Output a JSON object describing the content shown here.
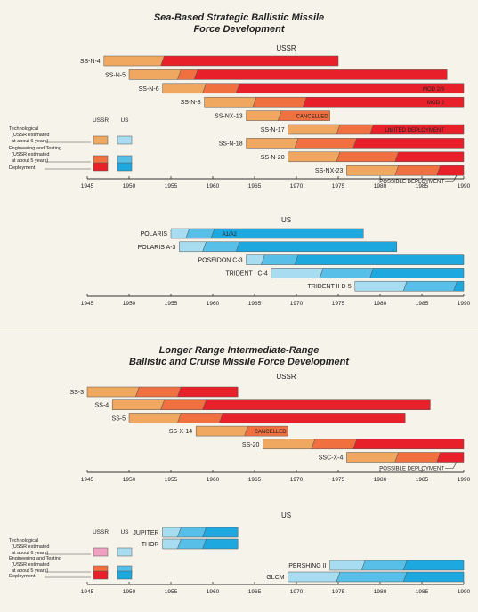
{
  "sections": {
    "sea": {
      "title_line1": "Sea-Based Strategic Ballistic Missile",
      "title_line2": "Force Development"
    },
    "lrinf": {
      "title_line1": "Longer Range Intermediate-Range",
      "title_line2": "Ballistic and Cruise Missile Force Development"
    }
  },
  "colors": {
    "ussr_tech": "#f0a860",
    "ussr_eng": "#f07040",
    "ussr_dep": "#e8202a",
    "us_tech": "#a8dcf0",
    "us_eng": "#58c0e8",
    "us_dep": "#1ea8e0",
    "tech_pink": "#f0a0c0"
  },
  "legend": {
    "ussr_header": "USSR",
    "us_header": "US",
    "technological": [
      "Technological",
      "(USSR estimated",
      "at about 6 years)"
    ],
    "engineering": [
      "Engineering and Testing",
      "(USSR estimated",
      "at about 5 years)"
    ],
    "deployment": "Deployment"
  },
  "chart_data": [
    {
      "type": "bar",
      "subtype": "timeline-gantt",
      "panel": "Sea-Based USSR",
      "heading": "USSR",
      "xlim": [
        1945,
        1990
      ],
      "xticks": [
        1945,
        1950,
        1955,
        1960,
        1965,
        1970,
        1975,
        1980,
        1985,
        1990
      ],
      "bars": [
        {
          "label": "SS-N-4",
          "segments": [
            {
              "phase": "tech",
              "from": 1947,
              "to": 1954
            },
            {
              "phase": "dep",
              "from": 1954,
              "to": 1975
            }
          ]
        },
        {
          "label": "SS-N-5",
          "segments": [
            {
              "phase": "tech",
              "from": 1950,
              "to": 1956
            },
            {
              "phase": "eng",
              "from": 1956,
              "to": 1958
            },
            {
              "phase": "dep",
              "from": 1958,
              "to": 1988
            }
          ]
        },
        {
          "label": "SS-N-6",
          "segments": [
            {
              "phase": "tech",
              "from": 1954,
              "to": 1959
            },
            {
              "phase": "eng",
              "from": 1959,
              "to": 1963
            },
            {
              "phase": "dep",
              "from": 1963,
              "to": 1990
            }
          ],
          "annotation": "MOD 2/3"
        },
        {
          "label": "SS-N-8",
          "segments": [
            {
              "phase": "tech",
              "from": 1959,
              "to": 1965
            },
            {
              "phase": "eng",
              "from": 1965,
              "to": 1971
            },
            {
              "phase": "dep",
              "from": 1971,
              "to": 1990
            }
          ],
          "annotation": "MOD 2"
        },
        {
          "label": "SS-NX-13",
          "segments": [
            {
              "phase": "tech",
              "from": 1964,
              "to": 1968
            },
            {
              "phase": "eng",
              "from": 1968,
              "to": 1974
            }
          ],
          "annotation": "CANCELLED"
        },
        {
          "label": "SS-N-17",
          "segments": [
            {
              "phase": "tech",
              "from": 1969,
              "to": 1975
            },
            {
              "phase": "eng",
              "from": 1975,
              "to": 1979
            },
            {
              "phase": "dep",
              "from": 1979,
              "to": 1990
            }
          ],
          "annotation": "LIMITED DEPLOYMENT"
        },
        {
          "label": "SS-N-18",
          "segments": [
            {
              "phase": "tech",
              "from": 1964,
              "to": 1970
            },
            {
              "phase": "eng",
              "from": 1970,
              "to": 1977
            },
            {
              "phase": "dep",
              "from": 1977,
              "to": 1990
            }
          ]
        },
        {
          "label": "SS-N-20",
          "segments": [
            {
              "phase": "tech",
              "from": 1969,
              "to": 1975
            },
            {
              "phase": "eng",
              "from": 1975,
              "to": 1982
            },
            {
              "phase": "dep",
              "from": 1982,
              "to": 1990
            }
          ]
        },
        {
          "label": "SS-NX-23",
          "segments": [
            {
              "phase": "tech",
              "from": 1976,
              "to": 1982
            },
            {
              "phase": "eng",
              "from": 1982,
              "to": 1987
            },
            {
              "phase": "dep",
              "from": 1987,
              "to": 1990
            }
          ],
          "annotation": "POSSIBLE DEPLOYMENT"
        }
      ]
    },
    {
      "type": "bar",
      "subtype": "timeline-gantt",
      "panel": "Sea-Based US",
      "heading": "US",
      "xlim": [
        1945,
        1990
      ],
      "xticks": [
        1945,
        1950,
        1955,
        1960,
        1965,
        1970,
        1975,
        1980,
        1985,
        1990
      ],
      "bars": [
        {
          "label": "POLARIS",
          "segments": [
            {
              "phase": "tech",
              "from": 1955,
              "to": 1957
            },
            {
              "phase": "eng",
              "from": 1957,
              "to": 1960
            },
            {
              "phase": "dep",
              "from": 1960,
              "to": 1978
            }
          ],
          "annotation": "A1/A2"
        },
        {
          "label": "POLARIS A-3",
          "segments": [
            {
              "phase": "tech",
              "from": 1956,
              "to": 1959
            },
            {
              "phase": "eng",
              "from": 1959,
              "to": 1963
            },
            {
              "phase": "dep",
              "from": 1963,
              "to": 1982
            }
          ]
        },
        {
          "label": "POSEIDON C-3",
          "segments": [
            {
              "phase": "tech",
              "from": 1964,
              "to": 1966
            },
            {
              "phase": "eng",
              "from": 1966,
              "to": 1970
            },
            {
              "phase": "dep",
              "from": 1970,
              "to": 1990
            }
          ]
        },
        {
          "label": "TRIDENT I C-4",
          "segments": [
            {
              "phase": "tech",
              "from": 1967,
              "to": 1973
            },
            {
              "phase": "eng",
              "from": 1973,
              "to": 1979
            },
            {
              "phase": "dep",
              "from": 1979,
              "to": 1990
            }
          ]
        },
        {
          "label": "TRIDENT II D-5",
          "segments": [
            {
              "phase": "tech",
              "from": 1977,
              "to": 1983
            },
            {
              "phase": "eng",
              "from": 1983,
              "to": 1989
            },
            {
              "phase": "dep",
              "from": 1989,
              "to": 1990
            }
          ]
        }
      ]
    },
    {
      "type": "bar",
      "subtype": "timeline-gantt",
      "panel": "LRINF USSR",
      "heading": "USSR",
      "xlim": [
        1945,
        1990
      ],
      "xticks": [
        1945,
        1950,
        1955,
        1960,
        1965,
        1970,
        1975,
        1980,
        1985,
        1990
      ],
      "bars": [
        {
          "label": "SS-3",
          "segments": [
            {
              "phase": "tech",
              "from": 1945,
              "to": 1951
            },
            {
              "phase": "eng",
              "from": 1951,
              "to": 1956
            },
            {
              "phase": "dep",
              "from": 1956,
              "to": 1963
            }
          ]
        },
        {
          "label": "SS-4",
          "segments": [
            {
              "phase": "tech",
              "from": 1948,
              "to": 1954
            },
            {
              "phase": "eng",
              "from": 1954,
              "to": 1959
            },
            {
              "phase": "dep",
              "from": 1959,
              "to": 1986
            }
          ]
        },
        {
          "label": "SS-5",
          "segments": [
            {
              "phase": "tech",
              "from": 1950,
              "to": 1956
            },
            {
              "phase": "eng",
              "from": 1956,
              "to": 1961
            },
            {
              "phase": "dep",
              "from": 1961,
              "to": 1983
            }
          ]
        },
        {
          "label": "SS-X-14",
          "segments": [
            {
              "phase": "tech",
              "from": 1958,
              "to": 1964
            },
            {
              "phase": "eng",
              "from": 1964,
              "to": 1969
            }
          ],
          "annotation": "CANCELLED"
        },
        {
          "label": "SS-20",
          "segments": [
            {
              "phase": "tech",
              "from": 1966,
              "to": 1972
            },
            {
              "phase": "eng",
              "from": 1972,
              "to": 1977
            },
            {
              "phase": "dep",
              "from": 1977,
              "to": 1990
            }
          ]
        },
        {
          "label": "SSC-X-4",
          "segments": [
            {
              "phase": "tech",
              "from": 1976,
              "to": 1982
            },
            {
              "phase": "eng",
              "from": 1982,
              "to": 1987
            },
            {
              "phase": "dep",
              "from": 1987,
              "to": 1990
            }
          ],
          "annotation": "POSSIBLE DEPLOYMENT"
        }
      ]
    },
    {
      "type": "bar",
      "subtype": "timeline-gantt",
      "panel": "LRINF US",
      "heading": "US",
      "xlim": [
        1945,
        1990
      ],
      "xticks": [
        1945,
        1950,
        1955,
        1960,
        1965,
        1970,
        1975,
        1980,
        1985,
        1990
      ],
      "bars": [
        {
          "label": "JUPITER",
          "segments": [
            {
              "phase": "tech",
              "from": 1954,
              "to": 1956
            },
            {
              "phase": "eng",
              "from": 1956,
              "to": 1959
            },
            {
              "phase": "dep",
              "from": 1959,
              "to": 1963
            }
          ]
        },
        {
          "label": "THOR",
          "segments": [
            {
              "phase": "tech",
              "from": 1954,
              "to": 1956
            },
            {
              "phase": "eng",
              "from": 1956,
              "to": 1959
            },
            {
              "phase": "dep",
              "from": 1959,
              "to": 1963
            }
          ]
        },
        {
          "label": "PERSHING II",
          "segments": [
            {
              "phase": "tech",
              "from": 1974,
              "to": 1978
            },
            {
              "phase": "eng",
              "from": 1978,
              "to": 1983
            },
            {
              "phase": "dep",
              "from": 1983,
              "to": 1990
            }
          ]
        },
        {
          "label": "GLCM",
          "segments": [
            {
              "phase": "tech",
              "from": 1969,
              "to": 1975
            },
            {
              "phase": "eng",
              "from": 1975,
              "to": 1983
            },
            {
              "phase": "dep",
              "from": 1983,
              "to": 1990
            }
          ]
        }
      ]
    }
  ]
}
